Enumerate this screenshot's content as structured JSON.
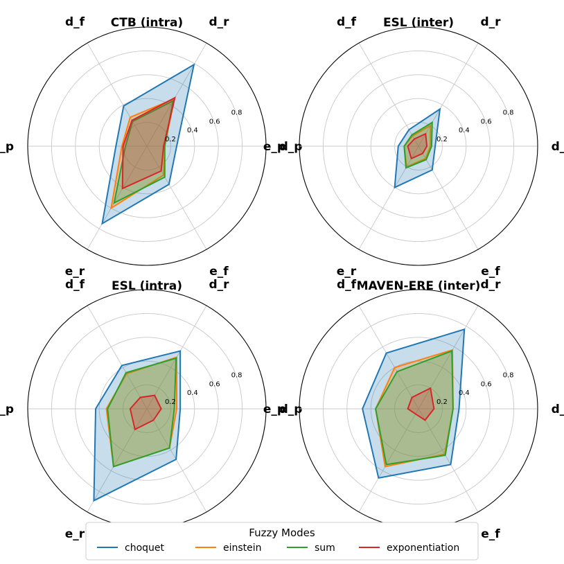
{
  "chart_data": [
    {
      "type": "radar",
      "title": "CTB (intra)",
      "axes": [
        "d_p",
        "d_r",
        "d_f",
        "e_p",
        "e_r",
        "e_f"
      ],
      "r_ticks": [
        "0.2",
        "0.4",
        "0.6",
        "0.8"
      ],
      "r_max": 1.0,
      "series": [
        {
          "name": "choquet",
          "values": [
            0.25,
            0.79,
            0.39,
            0.26,
            0.75,
            0.37
          ]
        },
        {
          "name": "einstein",
          "values": [
            0.15,
            0.46,
            0.28,
            0.21,
            0.6,
            0.28
          ]
        },
        {
          "name": "sum",
          "values": [
            0.15,
            0.44,
            0.24,
            0.18,
            0.55,
            0.3
          ]
        },
        {
          "name": "exponentiation",
          "values": [
            0.14,
            0.47,
            0.25,
            0.2,
            0.41,
            0.24
          ]
        }
      ]
    },
    {
      "type": "radar",
      "title": "ESL (inter)",
      "axes": [
        "d_p",
        "d_r",
        "d_f",
        "e_p",
        "e_r",
        "e_f"
      ],
      "r_ticks": [
        "0.2",
        "0.4",
        "0.6",
        "0.8"
      ],
      "r_max": 1.0,
      "series": [
        {
          "name": "choquet",
          "values": [
            0.14,
            0.36,
            0.16,
            0.17,
            0.4,
            0.23
          ]
        },
        {
          "name": "einstein",
          "values": [
            0.1,
            0.2,
            0.1,
            0.12,
            0.2,
            0.12
          ]
        },
        {
          "name": "sum",
          "values": [
            0.11,
            0.23,
            0.11,
            0.12,
            0.21,
            0.13
          ]
        },
        {
          "name": "exponentiation",
          "values": [
            0.07,
            0.12,
            0.07,
            0.09,
            0.12,
            0.07
          ]
        }
      ]
    },
    {
      "type": "radar",
      "title": "ESL (intra)",
      "axes": [
        "d_p",
        "d_r",
        "d_f",
        "e_p",
        "e_r",
        "e_f"
      ],
      "r_ticks": [
        "0.2",
        "0.4",
        "0.6",
        "0.8"
      ],
      "r_max": 1.0,
      "series": [
        {
          "name": "choquet",
          "values": [
            0.28,
            0.56,
            0.42,
            0.43,
            0.89,
            0.49
          ]
        },
        {
          "name": "einstein",
          "values": [
            0.25,
            0.5,
            0.34,
            0.34,
            0.56,
            0.38
          ]
        },
        {
          "name": "sum",
          "values": [
            0.23,
            0.49,
            0.35,
            0.33,
            0.56,
            0.38
          ]
        },
        {
          "name": "exponentiation",
          "values": [
            0.12,
            0.13,
            0.11,
            0.14,
            0.2,
            0.11
          ]
        }
      ]
    },
    {
      "type": "radar",
      "title": "MAVEN-ERE (inter)",
      "axes": [
        "d_p",
        "d_r",
        "d_f",
        "e_p",
        "e_r",
        "e_f"
      ],
      "r_ticks": [
        "0.2",
        "0.4",
        "0.6",
        "0.8"
      ],
      "r_max": 1.0,
      "series": [
        {
          "name": "choquet",
          "values": [
            0.34,
            0.77,
            0.54,
            0.47,
            0.67,
            0.54
          ]
        },
        {
          "name": "einstein",
          "values": [
            0.29,
            0.57,
            0.4,
            0.36,
            0.56,
            0.44
          ]
        },
        {
          "name": "sum",
          "values": [
            0.29,
            0.56,
            0.36,
            0.36,
            0.54,
            0.45
          ]
        },
        {
          "name": "exponentiation",
          "values": [
            0.13,
            0.2,
            0.11,
            0.09,
            0.05,
            0.11
          ]
        }
      ]
    }
  ],
  "legend": {
    "title": "Fuzzy Modes",
    "entries": [
      {
        "name": "choquet",
        "color": "#1f77b4"
      },
      {
        "name": "einstein",
        "color": "#ff7f0e"
      },
      {
        "name": "sum",
        "color": "#2ca02c"
      },
      {
        "name": "exponentiation",
        "color": "#d62728"
      }
    ]
  }
}
